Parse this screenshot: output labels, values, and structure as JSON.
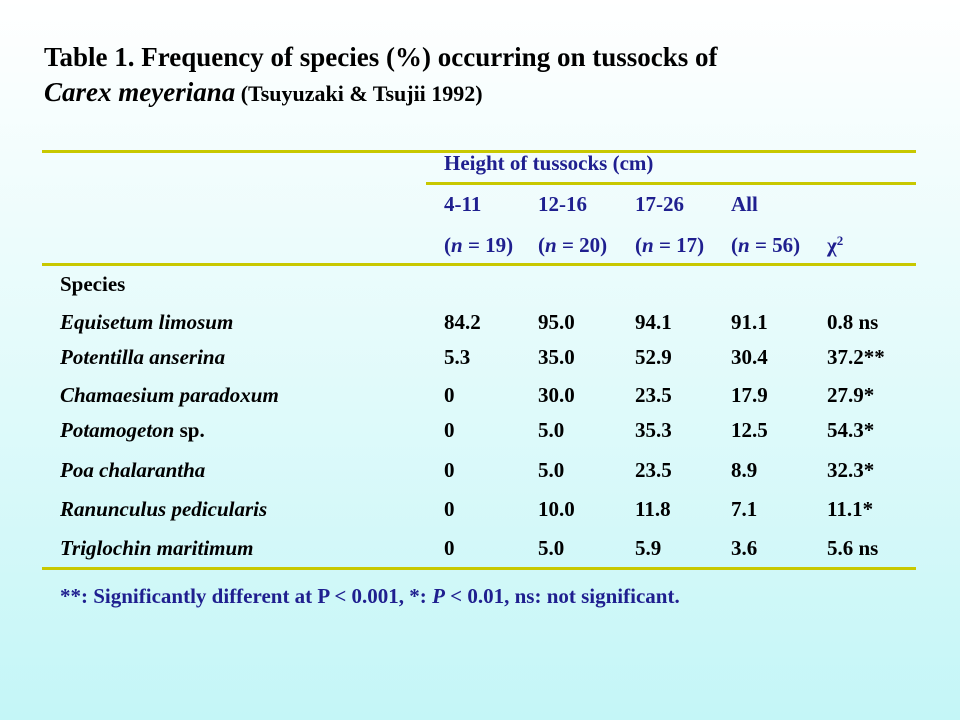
{
  "title": {
    "line1": "Table 1.  Frequency of species (%) occurring on tussocks of",
    "species": "Carex meyeriana",
    "citation": " (Tsuyuzaki & Tsujii 1992)"
  },
  "header": {
    "group_label": "Height of tussocks (cm)",
    "columns": [
      "4-11",
      "12-16",
      "17-26",
      "All"
    ],
    "n_prefix": "(",
    "n_italic": "n",
    "n_values": [
      " = 19)",
      " = 20)",
      " = 17)",
      " = 56)"
    ],
    "chi_symbol": "χ",
    "chi_sup": "2",
    "species_label": "Species"
  },
  "rows": [
    {
      "name": "Equisetum limosum",
      "suffix": "",
      "values": [
        "84.2",
        "95.0",
        "94.1",
        "91.1",
        "0.8 ns"
      ]
    },
    {
      "name": "Potentilla anserina",
      "suffix": "",
      "values": [
        "5.3",
        "35.0",
        "52.9",
        "30.4",
        "37.2**"
      ]
    },
    {
      "name": "Chamaesium paradoxum",
      "suffix": "",
      "values": [
        "0",
        "30.0",
        "23.5",
        "17.9",
        "27.9*"
      ]
    },
    {
      "name": "Potamogeton",
      "suffix": " sp.",
      "values": [
        "0",
        "5.0",
        "35.3",
        "12.5",
        "54.3*"
      ]
    },
    {
      "name": "Poa chalarantha",
      "suffix": "",
      "values": [
        "0",
        "5.0",
        "23.5",
        "8.9",
        "32.3*"
      ]
    },
    {
      "name": "Ranunculus pedicularis",
      "suffix": "",
      "values": [
        "0",
        "10.0",
        "11.8",
        "7.1",
        "11.1*"
      ]
    },
    {
      "name": "Triglochin maritimum",
      "suffix": "",
      "values": [
        "0",
        "5.0",
        "5.9",
        "3.6",
        "5.6 ns"
      ]
    }
  ],
  "footnote": {
    "part1": "**: Significantly different at P < 0.001, *: ",
    "p_italic": "P",
    "part2": " < 0.01, ns: not significant."
  },
  "colors": {
    "rule": "#c8c800",
    "header_text": "#1f1f8f"
  }
}
